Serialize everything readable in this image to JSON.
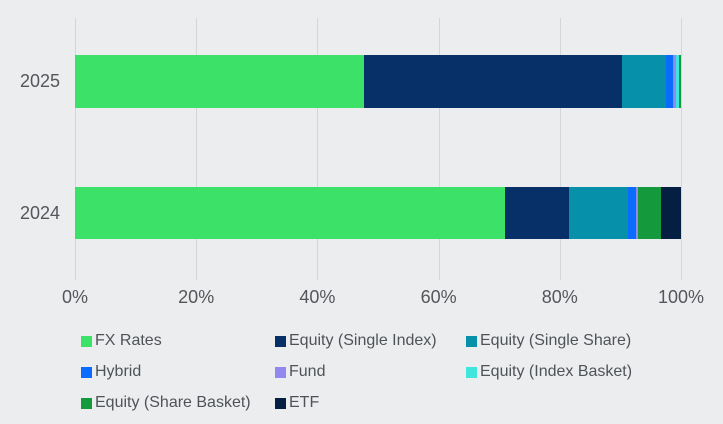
{
  "chart_data": {
    "type": "bar",
    "orientation": "horizontal",
    "stacked": true,
    "title": "",
    "categories": [
      "2025",
      "2024"
    ],
    "series": [
      {
        "name": "FX Rates",
        "color": "#3CE268",
        "values": [
          47.7,
          71.0
        ]
      },
      {
        "name": "Equity (Single Index)",
        "color": "#083068",
        "values": [
          42.5,
          10.6
        ]
      },
      {
        "name": "Equity (Single Share)",
        "color": "#0690A9",
        "values": [
          7.4,
          9.7
        ]
      },
      {
        "name": "Hybrid",
        "color": "#0A6BFF",
        "values": [
          1.1,
          1.3
        ]
      },
      {
        "name": "Fund",
        "color": "#9289F0",
        "values": [
          0.4,
          0.3
        ]
      },
      {
        "name": "Equity (Index Basket)",
        "color": "#40E5DC",
        "values": [
          0.5,
          0.0
        ]
      },
      {
        "name": "Equity (Share Basket)",
        "color": "#149A3C",
        "values": [
          0.4,
          3.8
        ]
      },
      {
        "name": "ETF",
        "color": "#051F42",
        "values": [
          0.0,
          3.3
        ]
      }
    ],
    "x_axis": {
      "min": 0,
      "max": 100,
      "tick_labels": [
        "0%",
        "20%",
        "40%",
        "60%",
        "80%",
        "100%"
      ],
      "unit": "%"
    },
    "grid": true,
    "legend_position": "bottom"
  },
  "colors": {
    "background": "#ECEDEF",
    "gridline": "#D4D6D8",
    "axis_text": "#54565A",
    "legend_text": "#4F5357"
  }
}
